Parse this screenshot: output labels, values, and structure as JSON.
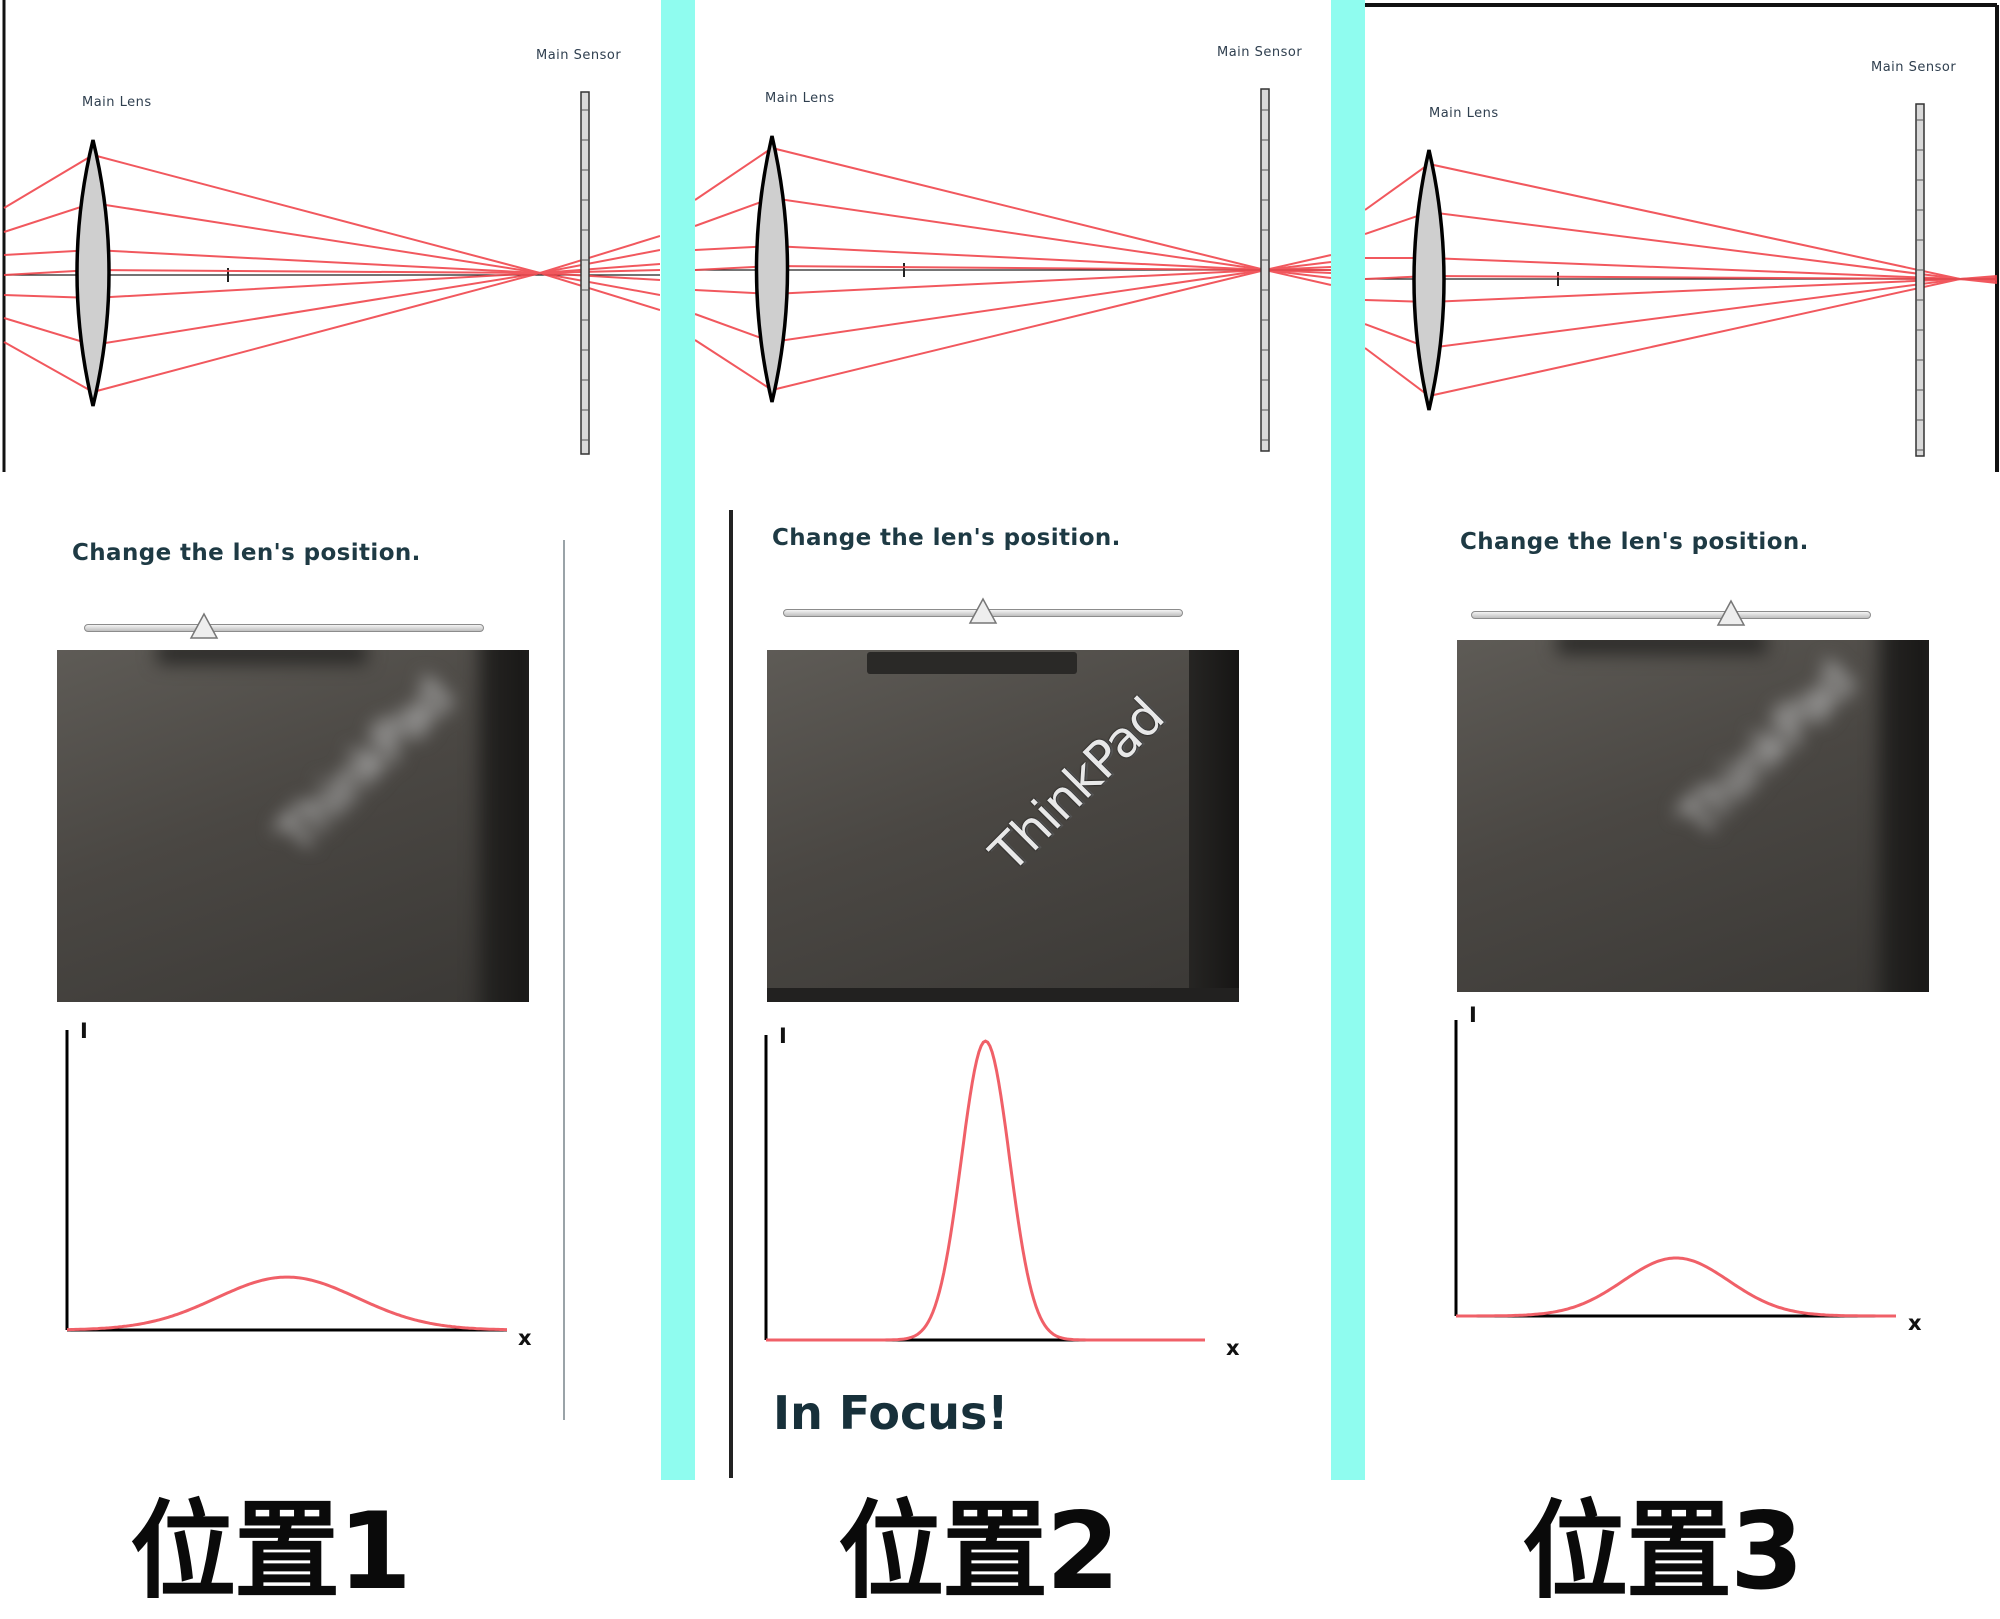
{
  "panels": [
    {
      "lens_label": "Main Lens",
      "sensor_label": "Main Sensor",
      "instruction": "Change the len's position.",
      "slider_value": 0.3,
      "photo_state": "blurred",
      "photo_logo_text": "ThinkPad",
      "graph_y_label": "I",
      "graph_x_label": "x",
      "peak_height": 0.18,
      "peak_width": 0.16,
      "position_label": "位置1"
    },
    {
      "lens_label": "Main Lens",
      "sensor_label": "Main Sensor",
      "instruction": "Change the len's position.",
      "slider_value": 0.5,
      "photo_state": "sharp",
      "photo_logo_text": "ThinkPad",
      "graph_y_label": "I",
      "graph_x_label": "x",
      "peak_height": 1.0,
      "peak_width": 0.055,
      "status_text": "In Focus!",
      "position_label": "位置2"
    },
    {
      "lens_label": "Main Lens",
      "sensor_label": "Main Sensor",
      "instruction": "Change the len's position.",
      "slider_value": 0.65,
      "photo_state": "blurred",
      "photo_logo_text": "ThinkPad",
      "graph_y_label": "I",
      "graph_x_label": "x",
      "peak_height": 0.2,
      "peak_width": 0.12,
      "position_label": "位置3"
    }
  ],
  "colors": {
    "ray": "#f0474d",
    "divider": "#8ffcef",
    "text_dark": "#1e3a44"
  }
}
